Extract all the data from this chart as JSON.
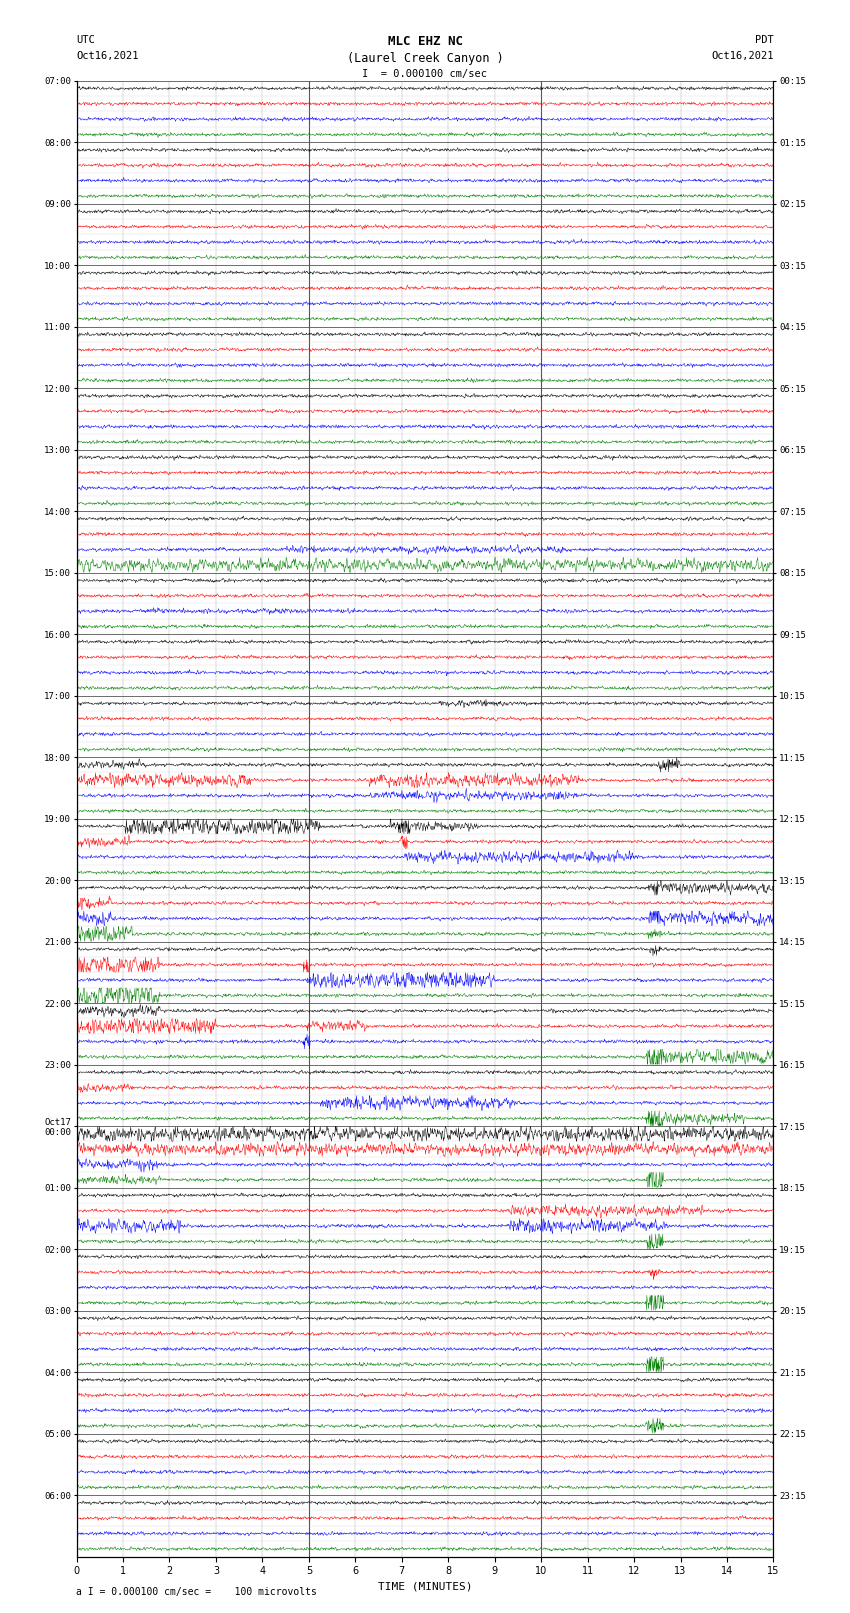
{
  "title_line1": "MLC EHZ NC",
  "title_line2": "(Laurel Creek Canyon )",
  "title_line3": "I  = 0.000100 cm/sec",
  "left_header_line1": "UTC",
  "left_header_line2": "Oct16,2021",
  "right_header_line1": "PDT",
  "right_header_line2": "Oct16,2021",
  "xlabel": "TIME (MINUTES)",
  "footer": "a I = 0.000100 cm/sec =    100 microvolts",
  "hour_labels_utc": [
    "07:00",
    "08:00",
    "09:00",
    "10:00",
    "11:00",
    "12:00",
    "13:00",
    "14:00",
    "15:00",
    "16:00",
    "17:00",
    "18:00",
    "19:00",
    "20:00",
    "21:00",
    "22:00",
    "23:00",
    "Oct17\n00:00",
    "01:00",
    "02:00",
    "03:00",
    "04:00",
    "05:00",
    "06:00"
  ],
  "hour_labels_pdt": [
    "00:15",
    "01:15",
    "02:15",
    "03:15",
    "04:15",
    "05:15",
    "06:15",
    "07:15",
    "08:15",
    "09:15",
    "10:15",
    "11:15",
    "12:15",
    "13:15",
    "14:15",
    "15:15",
    "16:15",
    "17:15",
    "18:15",
    "19:15",
    "20:15",
    "21:15",
    "22:15",
    "23:15"
  ],
  "num_hours": 24,
  "traces_per_hour": 4,
  "colors_cycle": [
    "black",
    "red",
    "blue",
    "green"
  ],
  "background_color": "white",
  "grid_color": "#999999",
  "fig_width": 8.5,
  "fig_height": 16.13,
  "dpi": 100,
  "x_ticks": [
    0,
    1,
    2,
    3,
    4,
    5,
    6,
    7,
    8,
    9,
    10,
    11,
    12,
    13,
    14,
    15
  ],
  "trace_amplitude": 0.35
}
